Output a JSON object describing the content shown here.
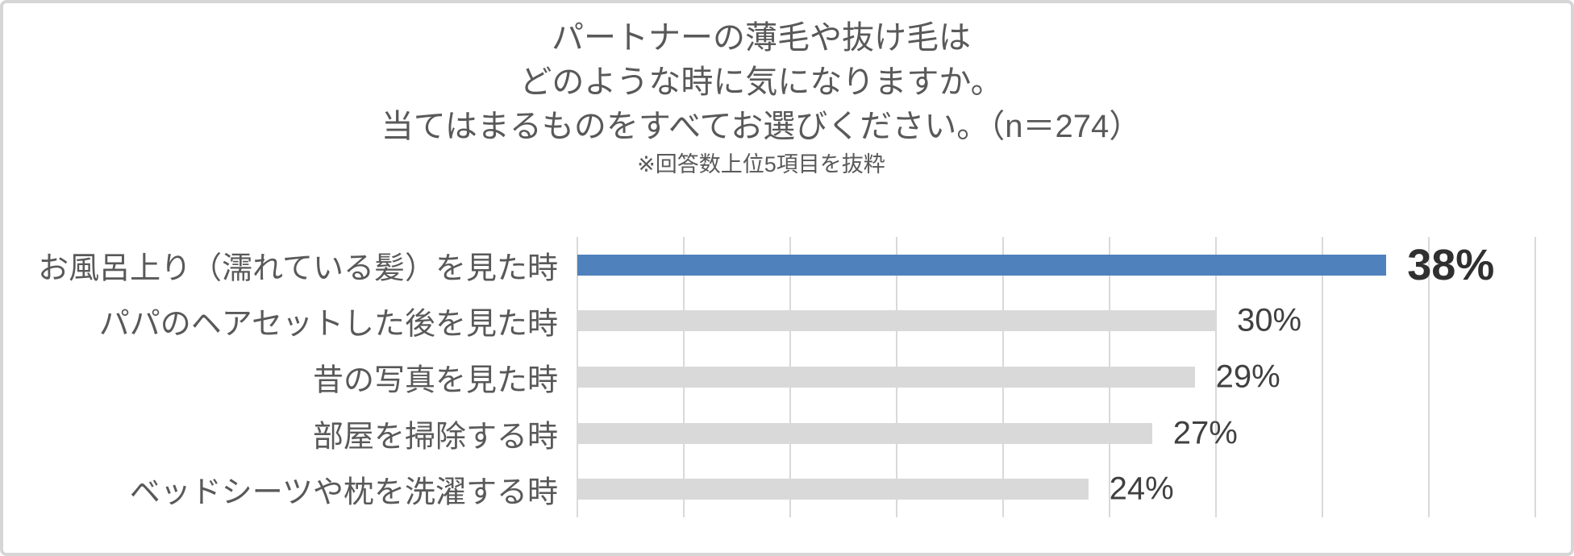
{
  "header": {
    "title_lines": [
      "パートナーの薄毛や抜け毛は",
      "どのような時に気になりますか。",
      "当てはまるものをすべてお選びください。（n＝274）"
    ],
    "note": "※回答数上位5項目を抜粋"
  },
  "chart_data": {
    "type": "bar",
    "orientation": "horizontal",
    "title": "パートナーの薄毛や抜け毛はどのような時に気になりますか。当てはまるものをすべてお選びください。（n＝274）",
    "subtitle": "※回答数上位5項目を抜粋",
    "categories": [
      "お風呂上り（濡れている髪）を見た時",
      "パパのヘアセットした後を見た時",
      "昔の写真を見た時",
      "部屋を掃除する時",
      "ベッドシーツや枕を洗濯する時"
    ],
    "values": [
      38,
      30,
      29,
      27,
      24
    ],
    "value_labels": [
      "38%",
      "30%",
      "29%",
      "27%",
      "24%"
    ],
    "emphasized_index": 0,
    "axis": {
      "min": 0,
      "max": 45,
      "gridline_step": 5,
      "grid": true,
      "tick_labels_visible": false
    },
    "legend": null,
    "colors": {
      "emphasis_bar": "#4F81BD",
      "default_bar": "#D9D9D9",
      "gridline": "#D9D9D9",
      "title_text": "#595959",
      "category_text": "#595959",
      "value_text": "#404040",
      "emphasis_value_text": "#303030",
      "frame_border": "#D6D6D6"
    }
  }
}
